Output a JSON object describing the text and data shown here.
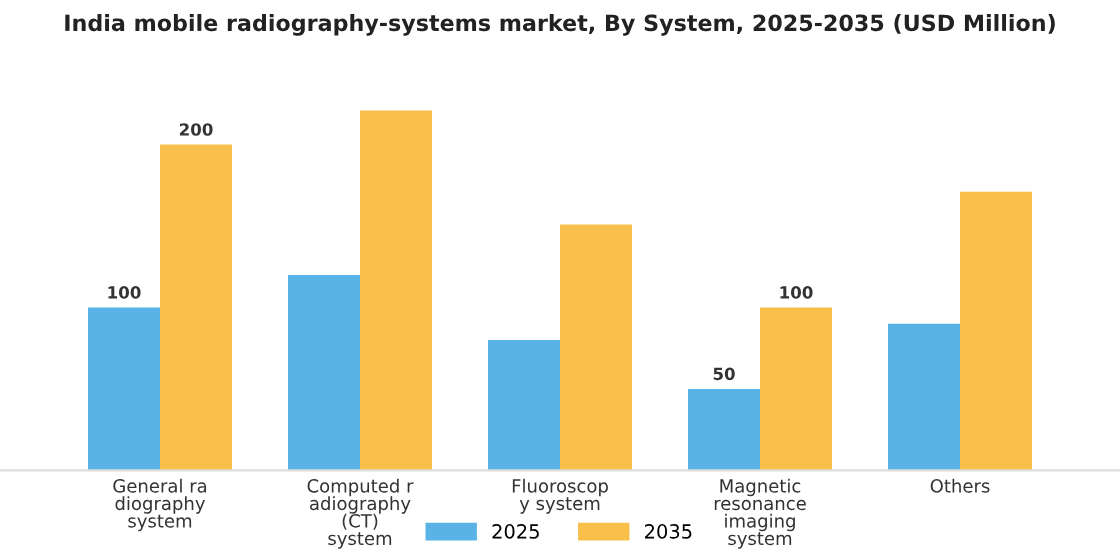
{
  "chart_data": {
    "type": "bar",
    "title": "India mobile radiography-systems market, By System, 2025-2035 (USD Million)",
    "categories": [
      "General ra\ndiography\nsystem",
      "Computed r\nadiography\n(CT)\nsystem",
      "Fluoroscop\ny system",
      "Magnetic\nresonance\nimaging\nsystem",
      "Others"
    ],
    "series": [
      {
        "name": "2025",
        "color": "#5ab3e6",
        "values": [
          100,
          120,
          80,
          50,
          90
        ],
        "value_labels": [
          "100",
          null,
          null,
          "50",
          null
        ]
      },
      {
        "name": "2035",
        "color": "#f8c04a",
        "values": [
          200,
          221,
          151,
          100,
          171
        ],
        "value_labels": [
          "200",
          null,
          null,
          "100",
          null
        ]
      }
    ],
    "legend": "bottom",
    "grid": false
  }
}
